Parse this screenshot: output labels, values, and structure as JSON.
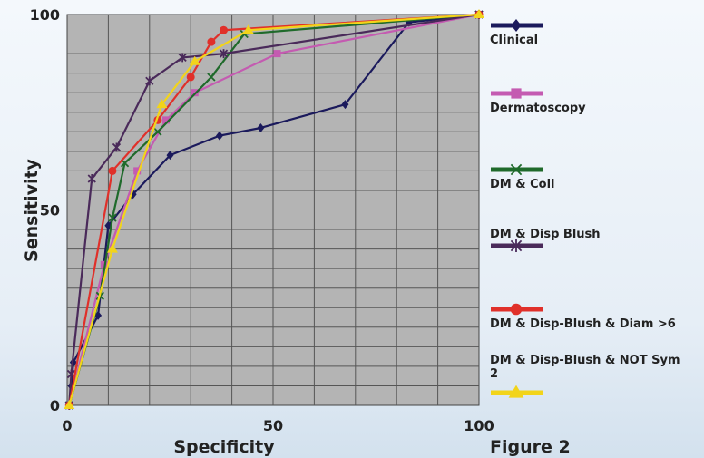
{
  "chart_data": {
    "type": "line",
    "xlabel": "Specificity",
    "ylabel": "Sensitivity",
    "xlim": [
      0,
      100
    ],
    "ylim": [
      0,
      100
    ],
    "x_ticks": [
      "0",
      "50",
      "100"
    ],
    "y_ticks": [
      "0",
      "50",
      "100"
    ],
    "grid": true,
    "legend_position": "right",
    "series": [
      {
        "name": "Clinical",
        "color": "#1b1a5c",
        "marker": "diamond",
        "points": [
          [
            0.5,
            0
          ],
          [
            1,
            5
          ],
          [
            1.5,
            11
          ],
          [
            7.5,
            23
          ],
          [
            10,
            46
          ],
          [
            16,
            54
          ],
          [
            25,
            64
          ],
          [
            37,
            69
          ],
          [
            47,
            71
          ],
          [
            67.5,
            77
          ],
          [
            83,
            98
          ],
          [
            100,
            100
          ]
        ]
      },
      {
        "name": "Dermatoscopy",
        "color": "#c45bb1",
        "marker": "square",
        "points": [
          [
            0.5,
            0
          ],
          [
            9,
            36
          ],
          [
            17,
            60
          ],
          [
            24,
            73
          ],
          [
            31,
            80
          ],
          [
            51,
            90
          ],
          [
            100,
            100
          ]
        ]
      },
      {
        "name": "DM & Coll",
        "color": "#1f6a2b",
        "marker": "x",
        "points": [
          [
            0.5,
            0
          ],
          [
            8,
            28
          ],
          [
            11,
            48
          ],
          [
            14,
            62
          ],
          [
            22,
            70
          ],
          [
            35,
            84
          ],
          [
            43,
            95
          ],
          [
            100,
            100
          ]
        ]
      },
      {
        "name": "DM & Disp Blush",
        "color": "#4a2a5a",
        "marker": "asterisk",
        "points": [
          [
            0.5,
            0
          ],
          [
            1,
            8
          ],
          [
            6,
            58
          ],
          [
            12,
            66
          ],
          [
            20,
            83
          ],
          [
            28,
            89
          ],
          [
            38,
            90
          ],
          [
            100,
            100
          ]
        ]
      },
      {
        "name": "DM & Disp-Blush & Diam >6",
        "color": "#e0302a",
        "marker": "circle",
        "points": [
          [
            0.5,
            0
          ],
          [
            11,
            60
          ],
          [
            22,
            73
          ],
          [
            30,
            84
          ],
          [
            35,
            93
          ],
          [
            38,
            96
          ],
          [
            100,
            100
          ]
        ]
      },
      {
        "name": "DM & Disp-Blush & NOT Sym 2",
        "color": "#f2d41a",
        "marker": "triangle",
        "points": [
          [
            0.5,
            0
          ],
          [
            11,
            40
          ],
          [
            23,
            77
          ],
          [
            31,
            88
          ],
          [
            44,
            96
          ],
          [
            100,
            100
          ]
        ]
      }
    ]
  },
  "caption": "Figure 2"
}
